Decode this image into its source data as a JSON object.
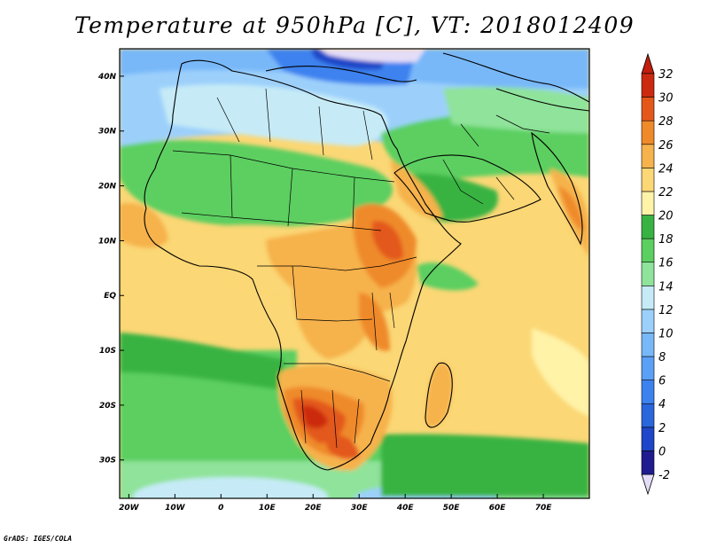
{
  "title": "Temperature at 950hPa [C], VT: 2018012409",
  "credit": "GrADS: IGES/COLA",
  "map": {
    "lon_range": [
      -22,
      80
    ],
    "lat_range": [
      -37,
      45
    ],
    "lat_labels": [
      {
        "lat": 40,
        "text": "40N"
      },
      {
        "lat": 30,
        "text": "30N"
      },
      {
        "lat": 20,
        "text": "20N"
      },
      {
        "lat": 10,
        "text": "10N"
      },
      {
        "lat": 0,
        "text": "EQ"
      },
      {
        "lat": -10,
        "text": "10S"
      },
      {
        "lat": -20,
        "text": "20S"
      },
      {
        "lat": -30,
        "text": "30S"
      }
    ],
    "lon_labels": [
      {
        "lon": -20,
        "text": "20W"
      },
      {
        "lon": -10,
        "text": "10W"
      },
      {
        "lon": 0,
        "text": "0"
      },
      {
        "lon": 10,
        "text": "10E"
      },
      {
        "lon": 20,
        "text": "20E"
      },
      {
        "lon": 30,
        "text": "30E"
      },
      {
        "lon": 40,
        "text": "40E"
      },
      {
        "lon": 50,
        "text": "50E"
      },
      {
        "lon": 60,
        "text": "60E"
      },
      {
        "lon": 70,
        "text": "70E"
      }
    ]
  },
  "colorbar": {
    "levels": [
      -2,
      0,
      2,
      4,
      6,
      8,
      10,
      12,
      14,
      16,
      18,
      20,
      22,
      24,
      26,
      28,
      30,
      32
    ],
    "labels": [
      "-2",
      "0",
      "2",
      "4",
      "6",
      "8",
      "10",
      "12",
      "14",
      "16",
      "18",
      "20",
      "22",
      "24",
      "26",
      "28",
      "30",
      "32"
    ],
    "colors": [
      "#1e1c8e",
      "#1f46c8",
      "#2a66dc",
      "#3c82ef",
      "#5aa0f6",
      "#78b8f9",
      "#9cd0fb",
      "#c6ebf7",
      "#8fe39a",
      "#5ccf61",
      "#38b343",
      "#fff3a8",
      "#fbd775",
      "#f6b24c",
      "#ef8a2a",
      "#e3581a",
      "#cc2a10"
    ],
    "under_color": "#e4ddf8",
    "over_color": "#c21d0d"
  }
}
